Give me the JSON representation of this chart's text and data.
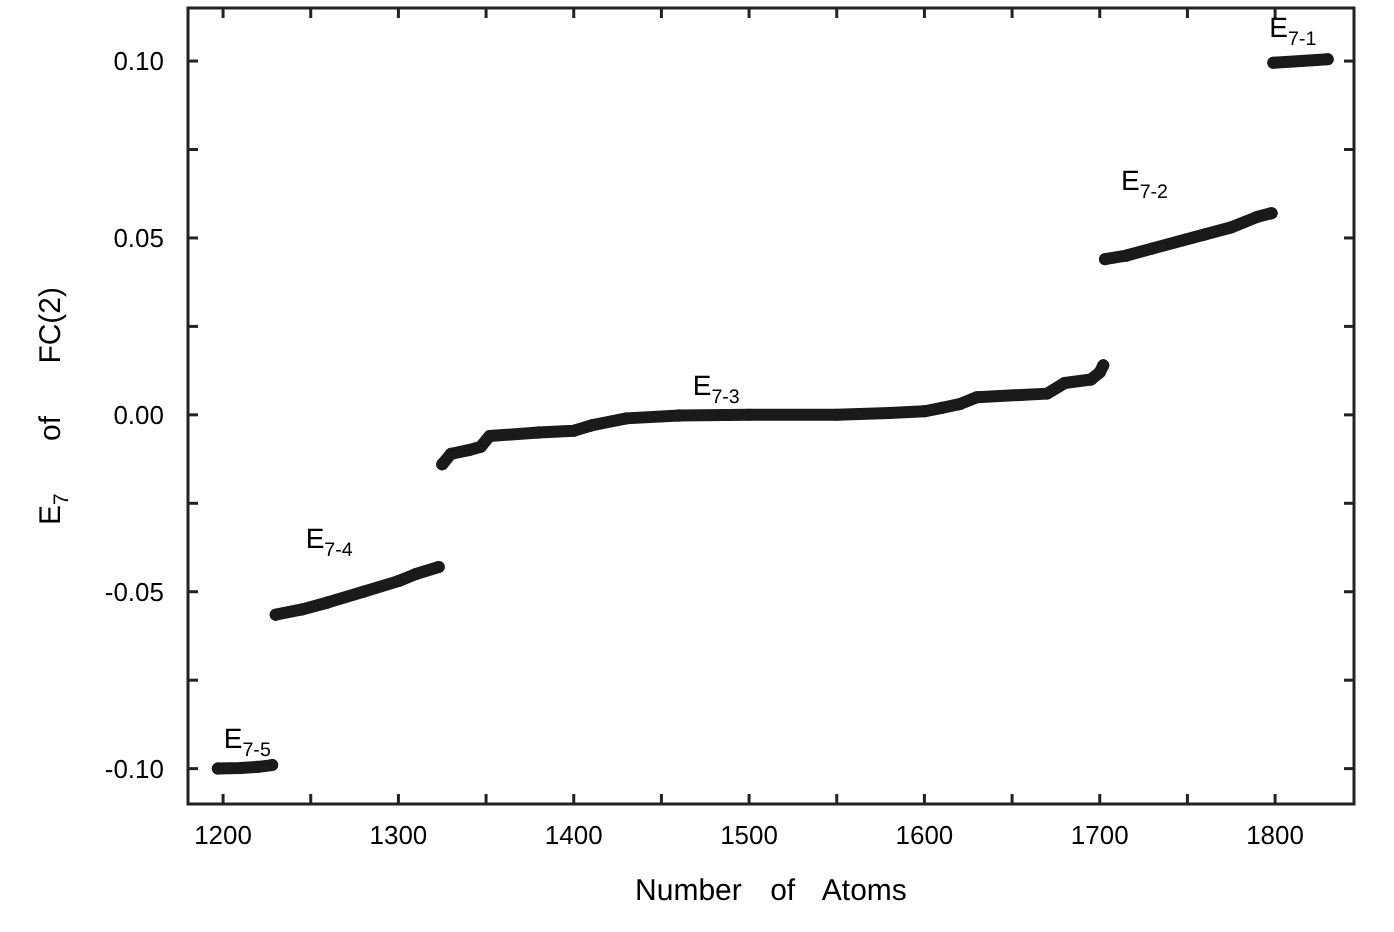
{
  "chart_data": {
    "type": "line",
    "xlabel": "Number of Atoms",
    "ylabel": "E$_{7}$ of FC(2)",
    "xlim": [
      1180,
      1845
    ],
    "ylim": [
      -0.11,
      0.115
    ],
    "xticks": [
      1200,
      {
        "value": 1250,
        "label": null
      },
      1300,
      {
        "value": 1350,
        "label": null
      },
      1400,
      {
        "value": 1450,
        "label": null
      },
      1500,
      {
        "value": 1550,
        "label": null
      },
      1600,
      {
        "value": 1650,
        "label": null
      },
      1700,
      {
        "value": 1750,
        "label": null
      },
      1800
    ],
    "yticks": [
      {
        "value": -0.1,
        "label": "-0.10"
      },
      {
        "value": -0.075,
        "label": null
      },
      {
        "value": -0.05,
        "label": "-0.05"
      },
      {
        "value": -0.025,
        "label": null
      },
      {
        "value": 0,
        "label": "0.00"
      },
      {
        "value": 0.025,
        "label": null
      },
      {
        "value": 0.05,
        "label": "0.05"
      },
      {
        "value": 0.075,
        "label": null
      },
      {
        "value": 0.1,
        "label": "0.10"
      }
    ],
    "grid": false,
    "marker": "circle",
    "line_style": "solid",
    "x": [
      1197,
      1210,
      1220,
      1228,
      1229,
      1230,
      1245,
      1260,
      1280,
      1300,
      1310,
      1323,
      1324,
      1325,
      1330,
      1340,
      1347,
      1352,
      1380,
      1400,
      1410,
      1430,
      1460,
      1500,
      1550,
      1580,
      1600,
      1610,
      1620,
      1630,
      1670,
      1680,
      1695,
      1700,
      1702,
      1702.5,
      1703,
      1715,
      1730,
      1760,
      1775,
      1790,
      1798,
      1798.5,
      1799,
      1815,
      1830
    ],
    "series": [
      {
        "color": "#1a1a1a",
        "values": [
          -0.1,
          -0.0998,
          -0.0995,
          -0.099,
          null,
          -0.0565,
          -0.055,
          -0.053,
          -0.05,
          -0.047,
          -0.045,
          -0.043,
          null,
          -0.014,
          -0.011,
          -0.01,
          -0.009,
          -0.006,
          -0.005,
          -0.0045,
          -0.003,
          -0.001,
          -0.0002,
          0,
          0,
          0.0005,
          0.001,
          0.002,
          0.003,
          0.005,
          0.006,
          0.009,
          0.01,
          0.012,
          0.014,
          null,
          0.044,
          0.045,
          0.047,
          0.051,
          0.053,
          0.056,
          0.057,
          null,
          0.0995,
          0.1,
          0.1005
        ]
      }
    ],
    "annotations": [
      "E$_{7-5}$",
      "E$_{7-4}$",
      "E$_{7-3}$",
      "E$_{7-2}$",
      "E$_{7-1}$"
    ]
  }
}
